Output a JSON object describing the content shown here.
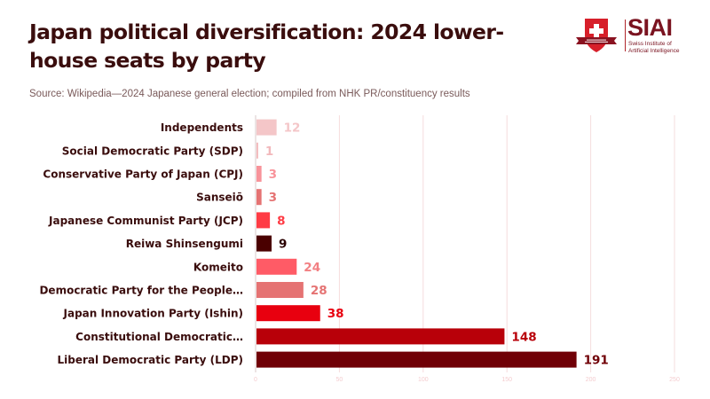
{
  "header": {
    "title": "Japan political diversification: 2024 lower-house seats by party",
    "subtitle": "Source: Wikipedia—2024 Japanese general election; compiled from NHK PR/constituency results"
  },
  "logo": {
    "name": "SIAI",
    "tagline_line1": "Swiss Institute of",
    "tagline_line2": "Artificial Intelligence",
    "icon": "swiss-shield-icon",
    "brand_color": "#7a1320",
    "shield_color": "#d71f2a"
  },
  "chart_data": {
    "type": "bar",
    "orientation": "horizontal",
    "title": "Japan political diversification: 2024 lower-house seats by party",
    "xlabel": "",
    "ylabel": "",
    "xlim": [
      0,
      250
    ],
    "xticks": [
      0,
      50,
      100,
      150,
      200,
      250
    ],
    "grid": true,
    "legend": "none",
    "categories": [
      "Independents",
      "Social Democratic Party (SDP)",
      "Conservative Party of Japan (CPJ)",
      "Sanseiō",
      "Japanese Communist Party (JCP)",
      "Reiwa Shinsengumi",
      "Komeito",
      "Democratic Party for the People…",
      "Japan Innovation Party (Ishin)",
      "Constitutional Democratic…",
      "Liberal Democratic Party (LDP)"
    ],
    "values": [
      12,
      1,
      3,
      3,
      8,
      9,
      24,
      28,
      38,
      148,
      191
    ],
    "colors": [
      "#f4c6c8",
      "#f2b8bb",
      "#f8939a",
      "#e57373",
      "#ff3b44",
      "#4a0000",
      "#ff5b66",
      "#e57373",
      "#e8000f",
      "#b80009",
      "#700006"
    ],
    "label_colors": [
      "#f4c6c8",
      "#f2b8bb",
      "#f8939a",
      "#e57373",
      "#ff3b44",
      "#2a0000",
      "#f28083",
      "#e57373",
      "#e8000f",
      "#b80009",
      "#700006"
    ]
  }
}
